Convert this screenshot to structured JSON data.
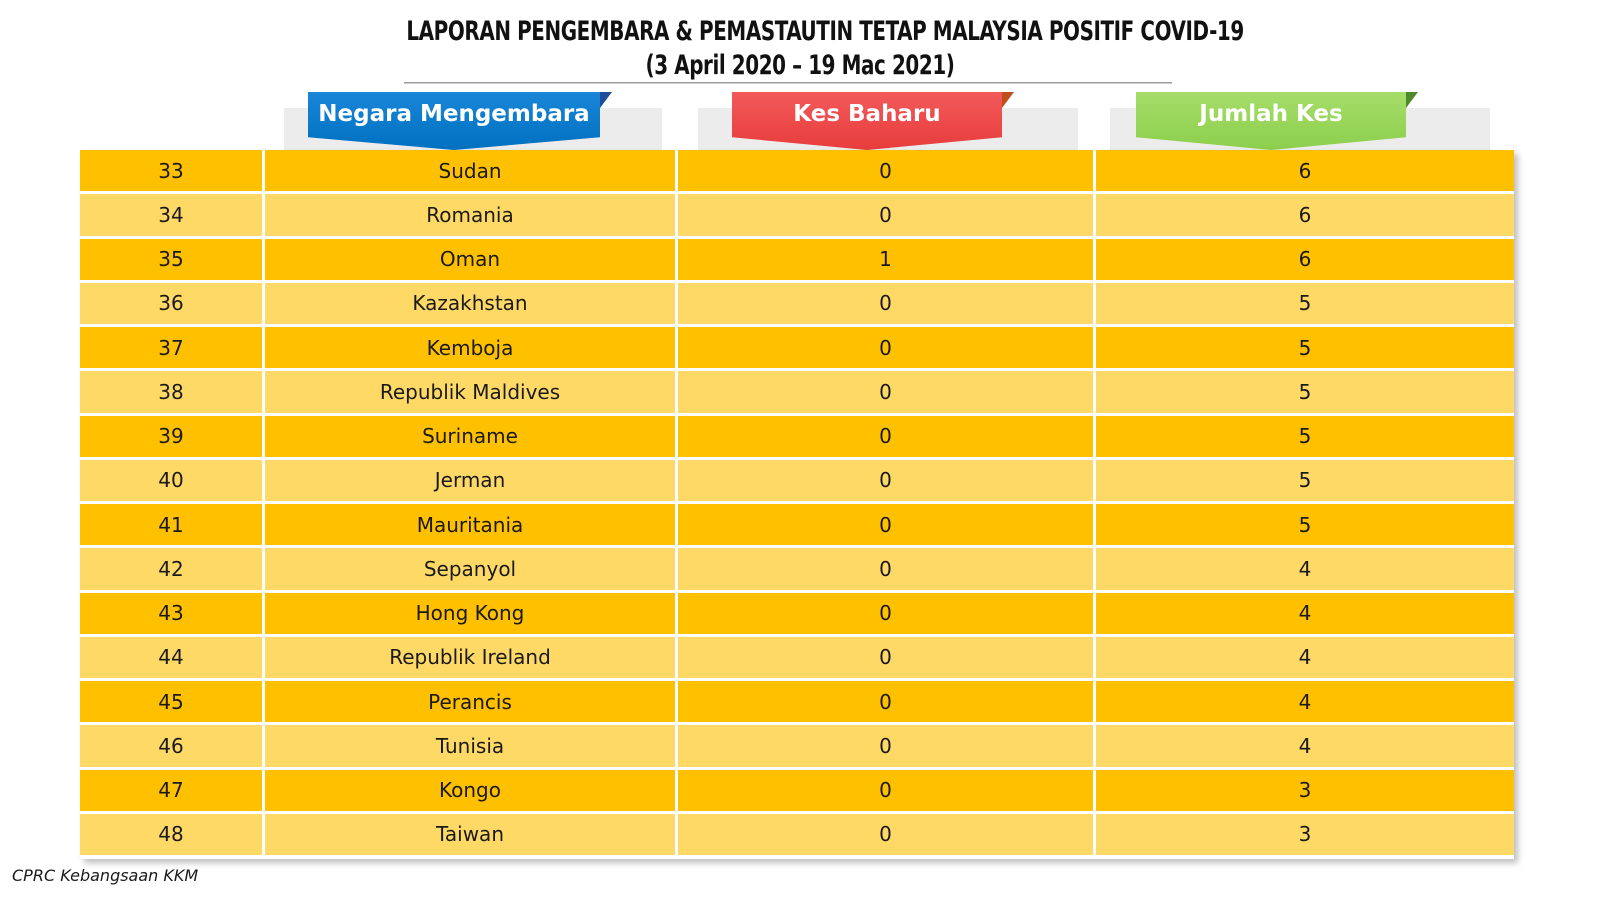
{
  "title": {
    "line1": "LAPORAN PENGEMBARA & PEMASTAUTIN TETAP MALAYSIA POSITIF COVID-19",
    "line2": "(3 April 2020 – 19 Mac 2021)"
  },
  "headers": {
    "country": "Negara Mengembara",
    "new_cases": "Kes Baharu",
    "total_cases": "Jumlah Kes"
  },
  "colors": {
    "header_country": "#0070c0",
    "header_new": "#e83c3c",
    "header_total": "#8ccf4c",
    "row_dark": "#ffc000",
    "row_light": "#ffd966"
  },
  "rows": [
    {
      "no": "33",
      "country": "Sudan",
      "new": "0",
      "total": "6"
    },
    {
      "no": "34",
      "country": "Romania",
      "new": "0",
      "total": "6"
    },
    {
      "no": "35",
      "country": "Oman",
      "new": "1",
      "total": "6"
    },
    {
      "no": "36",
      "country": "Kazakhstan",
      "new": "0",
      "total": "5"
    },
    {
      "no": "37",
      "country": "Kemboja",
      "new": "0",
      "total": "5"
    },
    {
      "no": "38",
      "country": "Republik Maldives",
      "new": "0",
      "total": "5"
    },
    {
      "no": "39",
      "country": "Suriname",
      "new": "0",
      "total": "5"
    },
    {
      "no": "40",
      "country": "Jerman",
      "new": "0",
      "total": "5"
    },
    {
      "no": "41",
      "country": "Mauritania",
      "new": "0",
      "total": "5"
    },
    {
      "no": "42",
      "country": "Sepanyol",
      "new": "0",
      "total": "4"
    },
    {
      "no": "43",
      "country": "Hong Kong",
      "new": "0",
      "total": "4"
    },
    {
      "no": "44",
      "country": "Republik Ireland",
      "new": "0",
      "total": "4"
    },
    {
      "no": "45",
      "country": "Perancis",
      "new": "0",
      "total": "4"
    },
    {
      "no": "46",
      "country": "Tunisia",
      "new": "0",
      "total": "4"
    },
    {
      "no": "47",
      "country": "Kongo",
      "new": "0",
      "total": "3"
    },
    {
      "no": "48",
      "country": "Taiwan",
      "new": "0",
      "total": "3"
    }
  ],
  "footer": "CPRC Kebangsaan KKM"
}
